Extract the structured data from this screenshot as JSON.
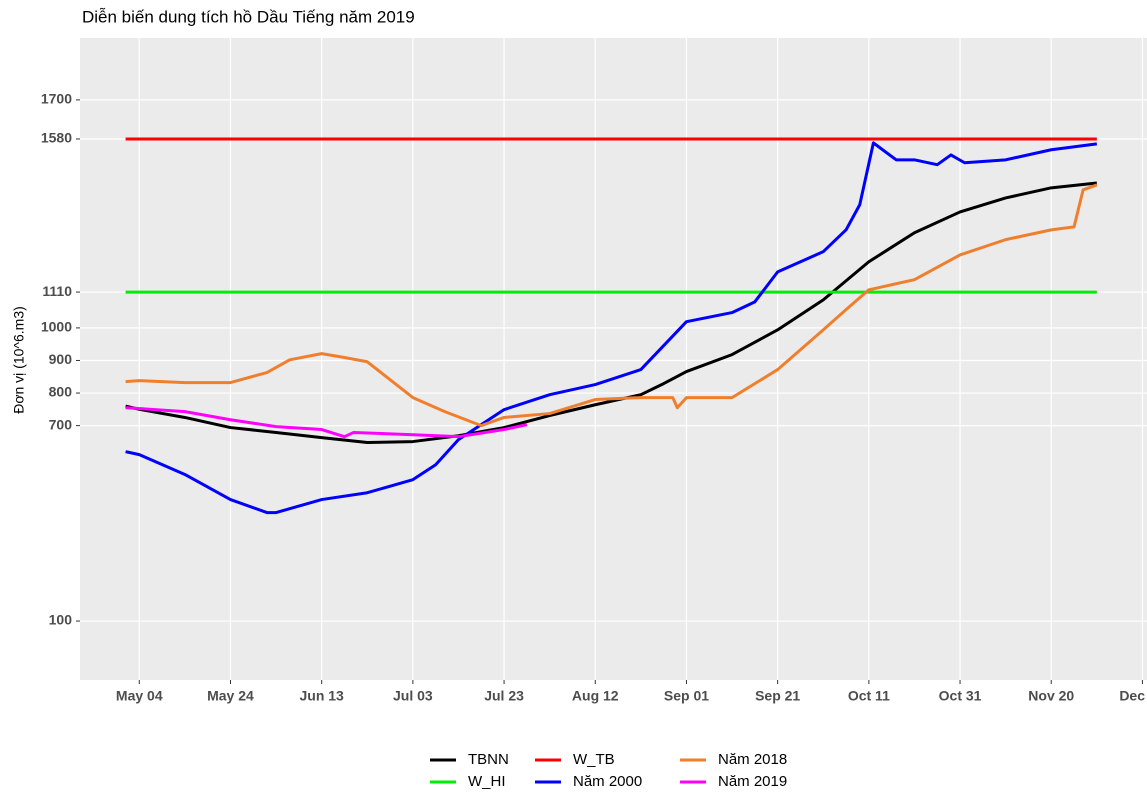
{
  "chart_data": {
    "type": "line",
    "title": "Diễn biến dung tích hồ Dầu Tiếng năm 2019",
    "y_label": "Đơn vị (10^6.m3)",
    "xlim": [
      "04-21",
      "12-11"
    ],
    "xticks": [
      {
        "value": "05-04",
        "label": "May 04"
      },
      {
        "value": "05-24",
        "label": "May 24"
      },
      {
        "value": "06-13",
        "label": "Jun 13"
      },
      {
        "value": "07-03",
        "label": "Jul 03"
      },
      {
        "value": "07-23",
        "label": "Jul 23"
      },
      {
        "value": "08-12",
        "label": "Aug 12"
      },
      {
        "value": "09-01",
        "label": "Sep 01"
      },
      {
        "value": "09-21",
        "label": "Sep 21"
      },
      {
        "value": "10-11",
        "label": "Oct 11"
      },
      {
        "value": "10-31",
        "label": "Oct 31"
      },
      {
        "value": "11-20",
        "label": "Nov 20"
      },
      {
        "value": "12-10",
        "label": "Dec"
      }
    ],
    "ylim": [
      -81,
      1890
    ],
    "yticks": [
      100,
      700,
      800,
      900,
      1000,
      1110,
      1580,
      1700
    ],
    "grid": true,
    "legend": "bottom",
    "series": [
      {
        "name": "TBNN",
        "color": "#000000",
        "x": [
          "05-01",
          "05-04",
          "05-14",
          "05-24",
          "06-03",
          "06-13",
          "06-23",
          "07-03",
          "07-13",
          "07-23",
          "08-02",
          "08-12",
          "08-22",
          "08-27",
          "09-01",
          "09-11",
          "09-21",
          "10-01",
          "10-11",
          "10-21",
          "10-31",
          "11-10",
          "11-20",
          "11-30"
        ],
        "values": [
          760,
          750,
          725,
          694,
          679,
          663,
          648,
          651,
          669,
          694,
          731,
          764,
          795,
          829,
          866,
          918,
          994,
          1086,
          1203,
          1292,
          1356,
          1399,
          1430,
          1445
        ]
      },
      {
        "name": "W_HI",
        "color": "#00ee00",
        "x": [
          "05-01",
          "11-30"
        ],
        "values": [
          1110,
          1110
        ]
      },
      {
        "name": "W_TB",
        "color": "#ff0000",
        "x": [
          "05-01",
          "11-30"
        ],
        "values": [
          1580,
          1580
        ]
      },
      {
        "name": "Năm 2000",
        "color": "#0000ff",
        "x": [
          "05-01",
          "05-04",
          "05-14",
          "05-24",
          "06-01",
          "06-03",
          "06-13",
          "06-23",
          "07-03",
          "07-08",
          "07-13",
          "07-18",
          "07-23",
          "08-02",
          "08-12",
          "08-22",
          "09-01",
          "09-11",
          "09-16",
          "09-21",
          "10-01",
          "10-06",
          "10-09",
          "10-12",
          "10-17",
          "10-21",
          "10-26",
          "10-29",
          "11-01",
          "11-10",
          "11-20",
          "11-30"
        ],
        "values": [
          620,
          611,
          550,
          473,
          433,
          433,
          473,
          494,
          534,
          580,
          657,
          703,
          749,
          795,
          826,
          872,
          1019,
          1047,
          1080,
          1172,
          1234,
          1301,
          1378,
          1568,
          1516,
          1516,
          1501,
          1531,
          1507,
          1516,
          1547,
          1565
        ]
      },
      {
        "name": "Năm 2018",
        "color": "#f07f2d",
        "x": [
          "05-01",
          "05-04",
          "05-14",
          "05-24",
          "06-01",
          "06-06",
          "06-13",
          "06-18",
          "06-23",
          "07-03",
          "07-10",
          "07-18",
          "07-23",
          "08-02",
          "08-12",
          "08-22",
          "08-29",
          "08-30",
          "09-01",
          "09-11",
          "09-21",
          "10-01",
          "10-06",
          "10-11",
          "10-21",
          "10-31",
          "11-10",
          "11-20",
          "11-25",
          "11-27",
          "11-30"
        ],
        "values": [
          835,
          838,
          832,
          832,
          863,
          902,
          921,
          909,
          896,
          786,
          743,
          700,
          725,
          737,
          780,
          786,
          786,
          755,
          786,
          786,
          872,
          994,
          1056,
          1117,
          1148,
          1224,
          1271,
          1301,
          1310,
          1424,
          1439
        ]
      },
      {
        "name": "Năm 2019",
        "color": "#ff00ff",
        "x": [
          "05-01",
          "05-14",
          "05-24",
          "06-03",
          "06-13",
          "06-18",
          "06-20",
          "07-03",
          "07-13",
          "07-23",
          "07-28"
        ],
        "values": [
          755,
          743,
          718,
          697,
          688,
          666,
          679,
          672,
          666,
          688,
          703
        ]
      }
    ]
  }
}
